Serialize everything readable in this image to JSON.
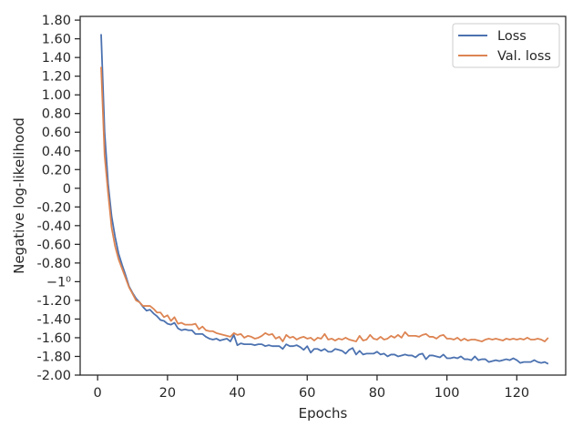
{
  "chart_data": {
    "type": "line",
    "xlabel": "Epochs",
    "ylabel": "Negative log-likelihood",
    "xlim": [
      -5,
      134
    ],
    "ylim": [
      -2.0,
      1.84
    ],
    "grid": false,
    "legend": "top-right",
    "x_ticks": [
      0,
      20,
      40,
      60,
      80,
      100,
      120
    ],
    "x_tick_labels": [
      "0",
      "20",
      "40",
      "60",
      "80",
      "100",
      "120"
    ],
    "y_ticks": [
      1.8,
      1.6,
      1.4,
      1.2,
      1.0,
      0.8,
      0.6,
      0.4,
      0.2,
      0,
      -0.2,
      -0.4,
      -0.6,
      -0.8,
      -1.0,
      -1.2,
      -1.4,
      -1.6,
      -1.8,
      -2.0
    ],
    "y_tick_labels": [
      "1.80",
      "1.60",
      "1.40",
      "1.20",
      "1.00",
      "0.80",
      "0.60",
      "0.40",
      "0.20",
      "0",
      "-0.20",
      "-0.40",
      "-0.60",
      "-0.80",
      "−1⁰",
      "-1.20",
      "-1.40",
      "-1.60",
      "-1.80",
      "-2.00"
    ],
    "x": [
      1,
      2,
      3,
      4,
      5,
      6,
      7,
      8,
      9,
      10,
      11,
      12,
      13,
      14,
      15,
      16,
      17,
      18,
      19,
      20,
      21,
      22,
      23,
      24,
      25,
      26,
      27,
      28,
      29,
      30,
      31,
      32,
      33,
      34,
      35,
      36,
      37,
      38,
      39,
      40,
      41,
      42,
      43,
      44,
      45,
      46,
      47,
      48,
      49,
      50,
      51,
      52,
      53,
      54,
      55,
      56,
      57,
      58,
      59,
      60,
      61,
      62,
      63,
      64,
      65,
      66,
      67,
      68,
      69,
      70,
      71,
      72,
      73,
      74,
      75,
      76,
      77,
      78,
      79,
      80,
      81,
      82,
      83,
      84,
      85,
      86,
      87,
      88,
      89,
      90,
      91,
      92,
      93,
      94,
      95,
      96,
      97,
      98,
      99,
      100,
      101,
      102,
      103,
      104,
      105,
      106,
      107,
      108,
      109,
      110,
      111,
      112,
      113,
      114,
      115,
      116,
      117,
      118,
      119,
      120,
      121,
      122,
      123,
      124,
      125,
      126,
      127,
      128,
      129
    ],
    "series": [
      {
        "name": "Loss",
        "color": "#4c72b0",
        "values": [
          1.65,
          0.6,
          0.05,
          -0.3,
          -0.52,
          -0.7,
          -0.82,
          -0.93,
          -1.05,
          -1.12,
          -1.18,
          -1.22,
          -1.27,
          -1.31,
          -1.3,
          -1.34,
          -1.37,
          -1.41,
          -1.42,
          -1.45,
          -1.46,
          -1.44,
          -1.5,
          -1.52,
          -1.51,
          -1.52,
          -1.52,
          -1.56,
          -1.56,
          -1.56,
          -1.59,
          -1.61,
          -1.62,
          -1.61,
          -1.63,
          -1.62,
          -1.61,
          -1.64,
          -1.57,
          -1.68,
          -1.66,
          -1.67,
          -1.67,
          -1.67,
          -1.68,
          -1.67,
          -1.67,
          -1.69,
          -1.68,
          -1.69,
          -1.69,
          -1.69,
          -1.72,
          -1.67,
          -1.69,
          -1.69,
          -1.68,
          -1.7,
          -1.73,
          -1.69,
          -1.76,
          -1.72,
          -1.72,
          -1.74,
          -1.72,
          -1.75,
          -1.75,
          -1.72,
          -1.73,
          -1.74,
          -1.77,
          -1.73,
          -1.71,
          -1.78,
          -1.74,
          -1.78,
          -1.77,
          -1.77,
          -1.77,
          -1.75,
          -1.78,
          -1.77,
          -1.8,
          -1.78,
          -1.78,
          -1.8,
          -1.79,
          -1.78,
          -1.79,
          -1.79,
          -1.81,
          -1.78,
          -1.77,
          -1.83,
          -1.79,
          -1.79,
          -1.8,
          -1.81,
          -1.78,
          -1.82,
          -1.82,
          -1.81,
          -1.82,
          -1.8,
          -1.83,
          -1.83,
          -1.84,
          -1.8,
          -1.84,
          -1.83,
          -1.83,
          -1.86,
          -1.85,
          -1.84,
          -1.85,
          -1.84,
          -1.83,
          -1.84,
          -1.82,
          -1.84,
          -1.87,
          -1.86,
          -1.86,
          -1.86,
          -1.84,
          -1.86,
          -1.87,
          -1.86,
          -1.88
        ]
      },
      {
        "name": "Val. loss",
        "color": "#dd8452",
        "values": [
          1.3,
          0.35,
          -0.05,
          -0.42,
          -0.62,
          -0.76,
          -0.86,
          -0.96,
          -1.06,
          -1.13,
          -1.2,
          -1.22,
          -1.26,
          -1.26,
          -1.26,
          -1.29,
          -1.33,
          -1.33,
          -1.38,
          -1.36,
          -1.42,
          -1.38,
          -1.45,
          -1.44,
          -1.46,
          -1.46,
          -1.46,
          -1.45,
          -1.51,
          -1.48,
          -1.52,
          -1.53,
          -1.53,
          -1.55,
          -1.56,
          -1.57,
          -1.58,
          -1.59,
          -1.55,
          -1.57,
          -1.56,
          -1.6,
          -1.58,
          -1.59,
          -1.61,
          -1.6,
          -1.58,
          -1.55,
          -1.57,
          -1.56,
          -1.61,
          -1.59,
          -1.64,
          -1.57,
          -1.6,
          -1.59,
          -1.62,
          -1.6,
          -1.59,
          -1.61,
          -1.6,
          -1.63,
          -1.6,
          -1.61,
          -1.56,
          -1.62,
          -1.61,
          -1.63,
          -1.61,
          -1.62,
          -1.6,
          -1.62,
          -1.63,
          -1.64,
          -1.58,
          -1.63,
          -1.62,
          -1.57,
          -1.61,
          -1.62,
          -1.59,
          -1.62,
          -1.61,
          -1.58,
          -1.6,
          -1.57,
          -1.6,
          -1.54,
          -1.58,
          -1.58,
          -1.58,
          -1.59,
          -1.57,
          -1.56,
          -1.59,
          -1.59,
          -1.61,
          -1.58,
          -1.57,
          -1.61,
          -1.61,
          -1.62,
          -1.6,
          -1.63,
          -1.61,
          -1.63,
          -1.62,
          -1.62,
          -1.63,
          -1.64,
          -1.62,
          -1.61,
          -1.62,
          -1.61,
          -1.62,
          -1.63,
          -1.61,
          -1.62,
          -1.61,
          -1.62,
          -1.61,
          -1.62,
          -1.6,
          -1.62,
          -1.62,
          -1.61,
          -1.62,
          -1.64,
          -1.6
        ]
      }
    ]
  }
}
